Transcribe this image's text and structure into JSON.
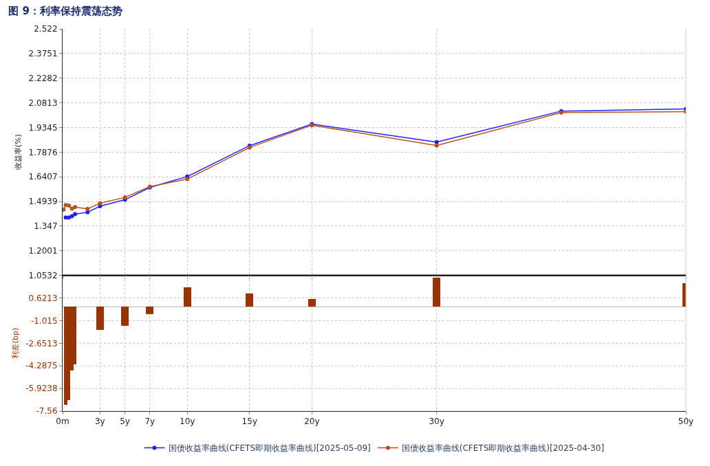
{
  "chart_data": [
    {
      "type": "line",
      "title": "图 9：利率保持震荡态势",
      "ylabel": "收益率(%)",
      "series": [
        {
          "name": "国债收益率曲线(CFETS即期收益率曲线)[2025-05-09]",
          "color": "#1f1fff",
          "x": [
            0.25,
            0.5,
            0.75,
            1,
            2,
            3,
            5,
            7,
            10,
            15,
            20,
            30,
            40,
            50
          ],
          "values": [
            1.398,
            1.398,
            1.406,
            1.418,
            1.429,
            1.465,
            1.504,
            1.577,
            1.642,
            1.826,
            1.955,
            1.847,
            2.032,
            2.045
          ]
        },
        {
          "name": "国债收益率曲线(CFETS即期收益率曲线)[2025-04-30]",
          "color": "#b4541e",
          "x": [
            0.08,
            0.25,
            0.5,
            0.75,
            1,
            2,
            3,
            5,
            7,
            10,
            15,
            20,
            30,
            40,
            50
          ],
          "values": [
            1.445,
            1.472,
            1.469,
            1.451,
            1.46,
            1.449,
            1.483,
            1.518,
            1.582,
            1.627,
            1.815,
            1.948,
            1.827,
            2.023,
            2.028
          ]
        }
      ],
      "xlim": [
        0,
        50
      ],
      "xticks": [
        0,
        3,
        5,
        7,
        10,
        15,
        20,
        30,
        50
      ],
      "ylim": [
        1.0532,
        2.522
      ],
      "yticks": [
        1.0532,
        1.2001,
        1.347,
        1.4939,
        1.6407,
        1.7876,
        1.9345,
        2.0813,
        2.2282,
        2.3751,
        2.522
      ],
      "tick_labels": "y",
      "grid": true,
      "legend": "bottom",
      "marker": "circle",
      "line_style": "solid"
    },
    {
      "type": "bar",
      "ylabel": "利差(bp)",
      "color": "#993300",
      "x": [
        0.25,
        0.5,
        0.75,
        1,
        3,
        5,
        7,
        10,
        15,
        20,
        30,
        50
      ],
      "values": [
        -7.11,
        -6.75,
        -4.62,
        -4.16,
        -1.69,
        -1.36,
        -0.54,
        1.4,
        0.98,
        0.57,
        2.13,
        1.73
      ],
      "xlim": [
        0,
        50
      ],
      "xticks": [
        {
          "value": 0,
          "label": "0m"
        },
        {
          "value": 3,
          "label": "3y"
        },
        {
          "value": 5,
          "label": "5y"
        },
        {
          "value": 7,
          "label": "7y"
        },
        {
          "value": 10,
          "label": "10y"
        },
        {
          "value": 15,
          "label": "15y"
        },
        {
          "value": 20,
          "label": "20y"
        },
        {
          "value": 30,
          "label": "30y"
        },
        {
          "value": 50,
          "label": "50y"
        }
      ],
      "ylim": [
        -7.56,
        2.2576
      ],
      "yticks": [
        -7.56,
        -5.9238,
        -4.2875,
        -2.6513,
        -1.015,
        0.6213
      ],
      "grid": true
    }
  ]
}
